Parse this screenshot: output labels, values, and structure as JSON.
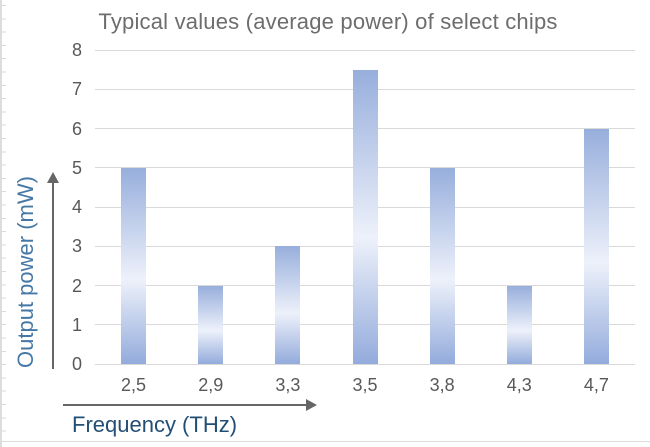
{
  "chart_data": {
    "type": "bar",
    "title": "Typical values (average power) of select chips",
    "categories": [
      "2,5",
      "2,9",
      "3,3",
      "3,5",
      "3,8",
      "4,3",
      "4,7"
    ],
    "values": [
      5,
      2,
      3,
      7.5,
      5,
      2,
      6
    ],
    "xlabel": "Frequency (THz)",
    "ylabel": "Output power (mW)",
    "ylim": [
      0,
      8
    ],
    "yticks": [
      0,
      1,
      2,
      3,
      4,
      5,
      6,
      7,
      8
    ],
    "grid": true,
    "legend": "none",
    "decimal_separator": ",",
    "axis_arrows": [
      "y-axis-up-arrow",
      "x-axis-right-arrow"
    ],
    "colors": {
      "bar_gradient_top": "#97aedc",
      "bar_gradient_mid": "#edf1fa",
      "bar_gradient_bottom": "#93abdc",
      "gridline": "#d9d9d9",
      "tick_label": "#595959",
      "title": "#6d6d6d",
      "xlabel_color": "#234f76",
      "ylabel_color": "#4678a6",
      "arrow": "#666666",
      "frame_border": "#dcdcdc",
      "background": "#ffffff"
    }
  }
}
